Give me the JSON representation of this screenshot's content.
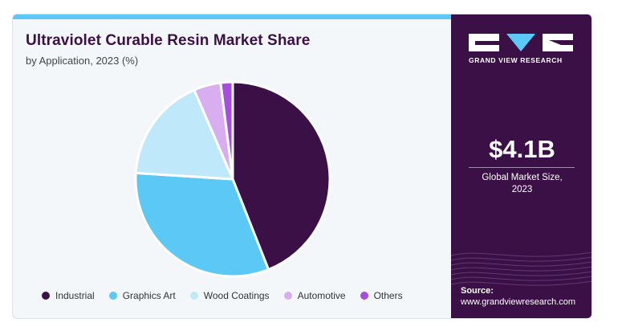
{
  "title": "Ultraviolet Curable Resin Market Share",
  "subtitle": "by Application, 2023 (%)",
  "chart_data": {
    "type": "pie",
    "categories": [
      "Industrial",
      "Graphics Art",
      "Wood Coatings",
      "Automotive",
      "Others"
    ],
    "values": [
      44.0,
      32.0,
      17.5,
      4.5,
      2.0
    ],
    "colors": [
      "#3b1046",
      "#5bc8f5",
      "#bfe8fb",
      "#d8aef0",
      "#a64fdc"
    ],
    "legend_position": "bottom"
  },
  "sidebar": {
    "brand_name": "GRAND VIEW RESEARCH",
    "market_size": "$4.1B",
    "market_size_label_line1": "Global Market Size,",
    "market_size_label_line2": "2023",
    "source_label": "Source:",
    "source_url": "www.grandviewresearch.com"
  }
}
